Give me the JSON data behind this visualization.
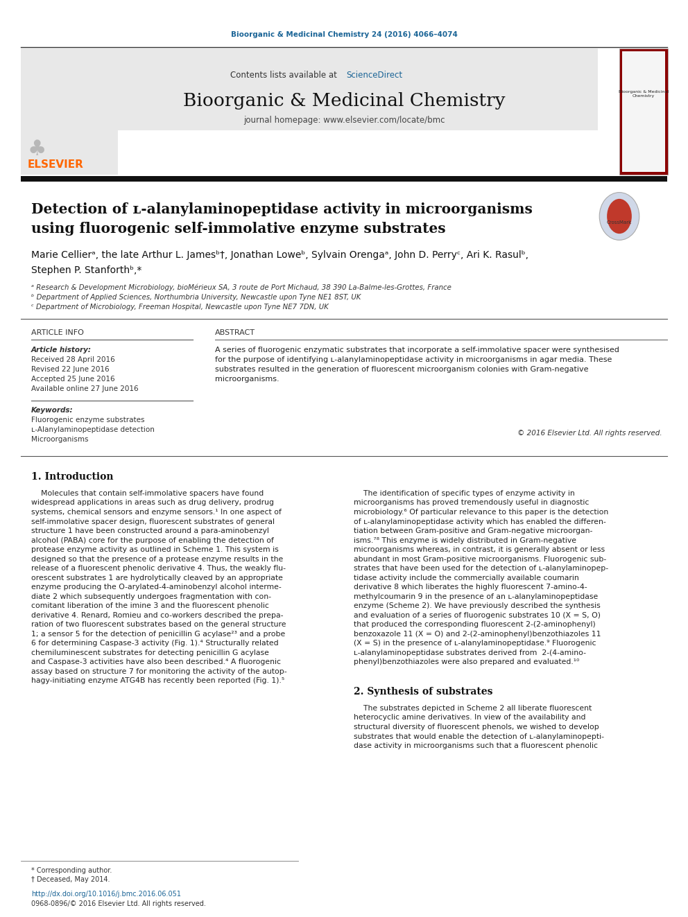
{
  "page_width": 9.92,
  "page_height": 13.23,
  "bg_color": "#ffffff",
  "journal_ref": "Bioorganic & Medicinal Chemistry 24 (2016) 4066–4074",
  "journal_ref_color": "#1a6496",
  "header_bg": "#e8e8e8",
  "header_text": "Contents lists available at",
  "sciencedirect_text": "ScienceDirect",
  "sciencedirect_color": "#1a6496",
  "journal_name": "Bioorganic & Medicinal Chemistry",
  "journal_homepage": "journal homepage: www.elsevier.com/locate/bmc",
  "title_line1": "Detection of ʟ-alanylaminopeptidase activity in microorganisms",
  "title_line2": "using fluorogenic self-immolative enzyme substrates",
  "authors": "Marie Cellierᵃ, the late Arthur L. Jamesᵇ†, Jonathan Loweᵇ, Sylvain Orengaᵃ, John D. Perryᶜ, Ari K. Rasulᵇ,",
  "authors2": "Stephen P. Stanforthᵇ,*",
  "affil_a": "ᵃ Research & Development Microbiology, bioMérieux SA, 3 route de Port Michaud, 38 390 La-Balme-les-Grottes, France",
  "affil_b": "ᵇ Department of Applied Sciences, Northumbria University, Newcastle upon Tyne NE1 8ST, UK",
  "affil_c": "ᶜ Department of Microbiology, Freeman Hospital, Newcastle upon Tyne NE7 7DN, UK",
  "article_info_header": "ARTICLE INFO",
  "abstract_header": "ABSTRACT",
  "article_history_label": "Article history:",
  "received": "Received 28 April 2016",
  "revised": "Revised 22 June 2016",
  "accepted": "Accepted 25 June 2016",
  "available": "Available online 27 June 2016",
  "keywords_label": "Keywords:",
  "keyword1": "Fluorogenic enzyme substrates",
  "keyword2": "ʟ-Alanylaminopeptidase detection",
  "keyword3": "Microorganisms",
  "abstract_lines": [
    "A series of fluorogenic enzymatic substrates that incorporate a self-immolative spacer were synthesised",
    "for the purpose of identifying ʟ-alanylaminopeptidase activity in microorganisms in agar media. These",
    "substrates resulted in the generation of fluorescent microorganism colonies with Gram-negative",
    "microorganisms."
  ],
  "copyright": "© 2016 Elsevier Ltd. All rights reserved.",
  "section1_title": "1. Introduction",
  "left_col_lines": [
    "    Molecules that contain self-immolative spacers have found",
    "widespread applications in areas such as drug delivery, prodrug",
    "systems, chemical sensors and enzyme sensors.¹ In one aspect of",
    "self-immolative spacer design, fluorescent substrates of general",
    "structure 1 have been constructed around a para-aminobenzyl",
    "alcohol (PABA) core for the purpose of enabling the detection of",
    "protease enzyme activity as outlined in Scheme 1. This system is",
    "designed so that the presence of a protease enzyme results in the",
    "release of a fluorescent phenolic derivative 4. Thus, the weakly flu-",
    "orescent substrates 1 are hydrolytically cleaved by an appropriate",
    "enzyme producing the O-arylated-4-aminobenzyl alcohol interme-",
    "diate 2 which subsequently undergoes fragmentation with con-",
    "comitant liberation of the imine 3 and the fluorescent phenolic",
    "derivative 4. Renard, Romieu and co-workers described the prepa-",
    "ration of two fluorescent substrates based on the general structure",
    "1; a sensor 5 for the detection of penicillin G acylase²³ and a probe",
    "6 for determining Caspase-3 activity (Fig. 1).⁴ Structurally related",
    "chemiluminescent substrates for detecting penicillin G acylase",
    "and Caspase-3 activities have also been described.⁴ A fluorogenic",
    "assay based on structure 7 for monitoring the activity of the autop-",
    "hagy-initiating enzyme ATG4B has recently been reported (Fig. 1).⁵"
  ],
  "right_col_lines": [
    "    The identification of specific types of enzyme activity in",
    "microorganisms has proved tremendously useful in diagnostic",
    "microbiology.⁶ Of particular relevance to this paper is the detection",
    "of ʟ-alanylaminopeptidase activity which has enabled the differen-",
    "tiation between Gram-positive and Gram-negative microorgan-",
    "isms.⁷⁸ This enzyme is widely distributed in Gram-negative",
    "microorganisms whereas, in contrast, it is generally absent or less",
    "abundant in most Gram-positive microorganisms. Fluorogenic sub-",
    "strates that have been used for the detection of ʟ-alanylaminopep-",
    "tidase activity include the commercially available coumarin",
    "derivative 8 which liberates the highly fluorescent 7-amino-4-",
    "methylcoumarin 9 in the presence of an ʟ-alanylaminopeptidase",
    "enzyme (Scheme 2). We have previously described the synthesis",
    "and evaluation of a series of fluorogenic substrates 10 (X = S, O)",
    "that produced the corresponding fluorescent 2-(2-aminophenyl)",
    "benzoxazole 11 (X = O) and 2-(2-aminophenyl)benzothiazoles 11",
    "(X = S) in the presence of ʟ-alanylaminopeptidase.⁹ Fluorogenic",
    "ʟ-alanylaminopeptidase substrates derived from  2-(4-amino-",
    "phenyl)benzothiazoles were also prepared and evaluated.¹⁰"
  ],
  "section2_title": "2. Synthesis of substrates",
  "synth_lines": [
    "    The substrates depicted in Scheme 2 all liberate fluorescent",
    "heterocyclic amine derivatives. In view of the availability and",
    "structural diversity of fluorescent phenols, we wished to develop",
    "substrates that would enable the detection of ʟ-alanylaminopepti-",
    "dase activity in microorganisms such that a fluorescent phenolic"
  ],
  "footer_corresponding": "* Corresponding author.",
  "footer_deceased": "† Deceased, May 2014.",
  "footer_doi": "http://dx.doi.org/10.1016/j.bmc.2016.06.051",
  "footer_issn": "0968-0896/© 2016 Elsevier Ltd. All rights reserved.",
  "elsevier_color": "#ff6600",
  "elsevier_text": "ELSEVIER"
}
